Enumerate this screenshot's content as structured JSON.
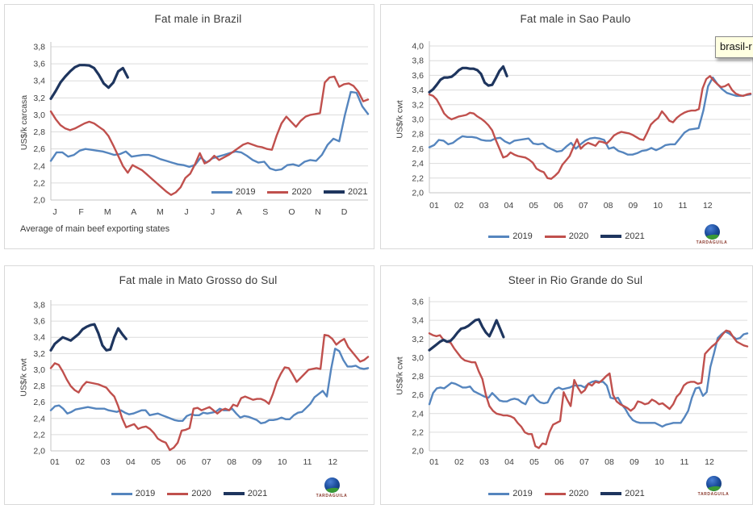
{
  "tooltip": {
    "text": "brasil-r"
  },
  "logo": {
    "text": "TARDAGUILA"
  },
  "colors": {
    "grid": "#DCDCDC",
    "axis": "#C6C6C6",
    "tick_label": "#404040"
  },
  "chart_data": [
    {
      "type": "line",
      "title": "Fat male in Brazil",
      "ylabel": "US$/k carcasa",
      "footnote": "Average of main beef exporting states",
      "ylim": [
        2.0,
        3.8
      ],
      "yticks": [
        "3,8",
        "3,6",
        "3,4",
        "3,2",
        "3,0",
        "2,8",
        "2,6",
        "2,4",
        "2,2",
        "2,0"
      ],
      "xlabels": [
        "J",
        "F",
        "M",
        "A",
        "M",
        "J",
        "J",
        "A",
        "S",
        "O",
        "N",
        "D"
      ],
      "grid": true,
      "legend_position": "inside-right",
      "series": [
        {
          "name": "2019",
          "color": "#5585BE",
          "values": [
            2.46,
            2.56,
            2.56,
            2.51,
            2.53,
            2.58,
            2.6,
            2.59,
            2.58,
            2.57,
            2.55,
            2.53,
            2.54,
            2.57,
            2.51,
            2.52,
            2.53,
            2.53,
            2.51,
            2.48,
            2.46,
            2.44,
            2.42,
            2.41,
            2.39,
            2.41,
            2.5,
            2.44,
            2.49,
            2.51,
            2.53,
            2.55,
            2.57,
            2.56,
            2.52,
            2.47,
            2.44,
            2.45,
            2.37,
            2.35,
            2.36,
            2.41,
            2.42,
            2.4,
            2.45,
            2.47,
            2.46,
            2.53,
            2.65,
            2.72,
            2.69,
            3.0,
            3.27,
            3.26,
            3.1,
            3.01
          ]
        },
        {
          "name": "2020",
          "color": "#C0504D",
          "values": [
            3.04,
            2.95,
            2.88,
            2.84,
            2.82,
            2.84,
            2.87,
            2.9,
            2.92,
            2.9,
            2.86,
            2.82,
            2.75,
            2.64,
            2.52,
            2.4,
            2.32,
            2.41,
            2.38,
            2.35,
            2.3,
            2.25,
            2.2,
            2.15,
            2.1,
            2.06,
            2.09,
            2.15,
            2.26,
            2.31,
            2.42,
            2.55,
            2.43,
            2.46,
            2.52,
            2.47,
            2.5,
            2.53,
            2.57,
            2.61,
            2.65,
            2.67,
            2.65,
            2.63,
            2.62,
            2.6,
            2.59,
            2.76,
            2.9,
            2.98,
            2.92,
            2.86,
            2.93,
            2.98,
            3.0,
            3.01,
            3.02,
            3.38,
            3.44,
            3.45,
            3.33,
            3.36,
            3.37,
            3.34,
            3.27,
            3.16,
            3.18
          ]
        },
        {
          "name": "2021",
          "color": "#1E355E",
          "values": [
            3.19,
            3.28,
            3.38,
            3.45,
            3.51,
            3.56,
            3.585,
            3.585,
            3.58,
            3.55,
            3.47,
            3.37,
            3.32,
            3.38,
            3.51,
            3.55,
            3.44
          ]
        }
      ]
    },
    {
      "type": "line",
      "title": "Fat male in Sao Paulo",
      "ylabel": "US$/k cwt",
      "ylim": [
        2.0,
        4.0
      ],
      "yticks": [
        "4,0",
        "3,8",
        "3,6",
        "3,4",
        "3,2",
        "3,0",
        "2,8",
        "2,6",
        "2,4",
        "2,2",
        "2,0"
      ],
      "xlabels": [
        "01",
        "02",
        "03",
        "04",
        "05",
        "06",
        "07",
        "08",
        "09",
        "10",
        "11",
        "12"
      ],
      "grid": true,
      "legend_position": "bottom",
      "series": [
        {
          "name": "2019",
          "color": "#5585BE",
          "values": [
            2.62,
            2.65,
            2.72,
            2.71,
            2.66,
            2.68,
            2.73,
            2.77,
            2.76,
            2.76,
            2.75,
            2.72,
            2.71,
            2.71,
            2.74,
            2.75,
            2.7,
            2.67,
            2.71,
            2.72,
            2.73,
            2.74,
            2.67,
            2.66,
            2.67,
            2.62,
            2.59,
            2.56,
            2.57,
            2.63,
            2.68,
            2.6,
            2.66,
            2.71,
            2.74,
            2.75,
            2.74,
            2.72,
            2.6,
            2.62,
            2.57,
            2.55,
            2.52,
            2.52,
            2.54,
            2.57,
            2.58,
            2.61,
            2.58,
            2.61,
            2.65,
            2.66,
            2.66,
            2.74,
            2.82,
            2.86,
            2.87,
            2.88,
            3.12,
            3.45,
            3.57,
            3.48,
            3.41,
            3.36,
            3.34,
            3.32,
            3.32,
            3.33,
            3.34
          ]
        },
        {
          "name": "2020",
          "color": "#C0504D",
          "values": [
            3.34,
            3.32,
            3.27,
            3.18,
            3.08,
            3.03,
            3.0,
            3.02,
            3.04,
            3.05,
            3.06,
            3.09,
            3.08,
            3.04,
            3.01,
            2.97,
            2.92,
            2.85,
            2.72,
            2.6,
            2.48,
            2.5,
            2.55,
            2.52,
            2.5,
            2.49,
            2.48,
            2.45,
            2.41,
            2.33,
            2.3,
            2.28,
            2.2,
            2.19,
            2.23,
            2.28,
            2.38,
            2.44,
            2.5,
            2.62,
            2.73,
            2.6,
            2.65,
            2.68,
            2.66,
            2.64,
            2.7,
            2.69,
            2.67,
            2.72,
            2.78,
            2.81,
            2.83,
            2.82,
            2.81,
            2.79,
            2.76,
            2.73,
            2.72,
            2.82,
            2.93,
            2.98,
            3.02,
            3.11,
            3.05,
            2.98,
            2.96,
            3.02,
            3.06,
            3.09,
            3.11,
            3.12,
            3.12,
            3.14,
            3.42,
            3.55,
            3.59,
            3.53,
            3.48,
            3.44,
            3.45,
            3.48,
            3.4,
            3.35,
            3.33,
            3.32,
            3.34,
            3.35
          ]
        },
        {
          "name": "2021",
          "color": "#1E355E",
          "values": [
            3.37,
            3.41,
            3.47,
            3.54,
            3.57,
            3.57,
            3.58,
            3.62,
            3.67,
            3.7,
            3.7,
            3.69,
            3.69,
            3.67,
            3.62,
            3.5,
            3.46,
            3.47,
            3.56,
            3.66,
            3.72,
            3.59
          ]
        }
      ]
    },
    {
      "type": "line",
      "title": "Fat male in Mato Grosso do Sul",
      "ylabel": "US$/k cwt",
      "ylim": [
        2.0,
        3.8
      ],
      "yticks": [
        "3,8",
        "3,6",
        "3,4",
        "3,2",
        "3,0",
        "2,8",
        "2,6",
        "2,4",
        "2,2",
        "2,0"
      ],
      "xlabels": [
        "01",
        "02",
        "03",
        "04",
        "05",
        "06",
        "07",
        "08",
        "09",
        "10",
        "11",
        "12"
      ],
      "grid": true,
      "legend_position": "bottom",
      "series": [
        {
          "name": "2019",
          "color": "#5585BE",
          "values": [
            2.5,
            2.55,
            2.56,
            2.52,
            2.46,
            2.48,
            2.51,
            2.52,
            2.53,
            2.54,
            2.53,
            2.52,
            2.52,
            2.52,
            2.5,
            2.49,
            2.48,
            2.5,
            2.47,
            2.45,
            2.46,
            2.48,
            2.5,
            2.5,
            2.44,
            2.45,
            2.46,
            2.44,
            2.42,
            2.4,
            2.38,
            2.37,
            2.37,
            2.43,
            2.45,
            2.44,
            2.44,
            2.47,
            2.46,
            2.47,
            2.48,
            2.52,
            2.5,
            2.5,
            2.52,
            2.46,
            2.41,
            2.43,
            2.42,
            2.4,
            2.38,
            2.34,
            2.35,
            2.38,
            2.38,
            2.39,
            2.41,
            2.39,
            2.39,
            2.44,
            2.47,
            2.48,
            2.53,
            2.58,
            2.66,
            2.7,
            2.74,
            2.67,
            3.0,
            3.26,
            3.23,
            3.12,
            3.04,
            3.04,
            3.05,
            3.02,
            3.01,
            3.02
          ]
        },
        {
          "name": "2020",
          "color": "#C0504D",
          "values": [
            3.02,
            3.08,
            3.06,
            2.98,
            2.88,
            2.8,
            2.75,
            2.72,
            2.8,
            2.85,
            2.84,
            2.83,
            2.82,
            2.8,
            2.78,
            2.72,
            2.67,
            2.55,
            2.4,
            2.29,
            2.31,
            2.33,
            2.27,
            2.29,
            2.3,
            2.27,
            2.22,
            2.15,
            2.12,
            2.1,
            2.01,
            2.04,
            2.1,
            2.25,
            2.26,
            2.28,
            2.52,
            2.53,
            2.5,
            2.52,
            2.54,
            2.5,
            2.46,
            2.5,
            2.52,
            2.5,
            2.57,
            2.55,
            2.65,
            2.67,
            2.65,
            2.63,
            2.64,
            2.64,
            2.62,
            2.58,
            2.7,
            2.85,
            2.95,
            3.03,
            3.02,
            2.94,
            2.85,
            2.9,
            2.95,
            3.0,
            3.01,
            3.02,
            3.01,
            3.43,
            3.42,
            3.38,
            3.31,
            3.35,
            3.38,
            3.28,
            3.22,
            3.16,
            3.1,
            3.12,
            3.16
          ]
        },
        {
          "name": "2021",
          "color": "#1E355E",
          "values": [
            3.24,
            3.32,
            3.36,
            3.4,
            3.38,
            3.36,
            3.4,
            3.44,
            3.5,
            3.53,
            3.55,
            3.56,
            3.45,
            3.3,
            3.24,
            3.25,
            3.4,
            3.51,
            3.44,
            3.38
          ]
        }
      ]
    },
    {
      "type": "line",
      "title": "Steer in Rio Grande do Sul",
      "ylabel": "US$/k cwt",
      "ylim": [
        2.0,
        3.6
      ],
      "yticks": [
        "3,6",
        "3,4",
        "3,2",
        "3,0",
        "2,8",
        "2,6",
        "2,4",
        "2,2",
        "2,0"
      ],
      "xlabels": [
        "01",
        "02",
        "03",
        "04",
        "05",
        "06",
        "07",
        "08",
        "09",
        "10",
        "11",
        "12"
      ],
      "grid": true,
      "legend_position": "bottom",
      "series": [
        {
          "name": "2019",
          "color": "#5585BE",
          "values": [
            2.5,
            2.62,
            2.67,
            2.68,
            2.67,
            2.7,
            2.73,
            2.72,
            2.7,
            2.68,
            2.68,
            2.69,
            2.64,
            2.62,
            2.6,
            2.58,
            2.57,
            2.62,
            2.58,
            2.54,
            2.53,
            2.53,
            2.55,
            2.56,
            2.55,
            2.52,
            2.5,
            2.58,
            2.6,
            2.55,
            2.52,
            2.51,
            2.52,
            2.6,
            2.66,
            2.68,
            2.66,
            2.67,
            2.68,
            2.7,
            2.7,
            2.7,
            2.68,
            2.72,
            2.74,
            2.75,
            2.74,
            2.74,
            2.7,
            2.57,
            2.56,
            2.57,
            2.5,
            2.45,
            2.38,
            2.33,
            2.31,
            2.3,
            2.3,
            2.3,
            2.3,
            2.3,
            2.28,
            2.26,
            2.28,
            2.29,
            2.3,
            2.3,
            2.3,
            2.36,
            2.43,
            2.57,
            2.67,
            2.68,
            2.59,
            2.63,
            2.9,
            3.05,
            3.21,
            3.25,
            3.28,
            3.26,
            3.23,
            3.2,
            3.21,
            3.25,
            3.26
          ]
        },
        {
          "name": "2020",
          "color": "#C0504D",
          "values": [
            3.26,
            3.24,
            3.23,
            3.24,
            3.19,
            3.17,
            3.16,
            3.1,
            3.05,
            3.0,
            2.97,
            2.96,
            2.95,
            2.95,
            2.85,
            2.77,
            2.6,
            2.48,
            2.43,
            2.4,
            2.39,
            2.38,
            2.38,
            2.37,
            2.35,
            2.3,
            2.26,
            2.2,
            2.18,
            2.18,
            2.05,
            2.03,
            2.08,
            2.07,
            2.2,
            2.28,
            2.3,
            2.32,
            2.63,
            2.55,
            2.48,
            2.76,
            2.68,
            2.62,
            2.65,
            2.72,
            2.7,
            2.74,
            2.73,
            2.76,
            2.8,
            2.83,
            2.6,
            2.53,
            2.5,
            2.48,
            2.46,
            2.43,
            2.46,
            2.53,
            2.52,
            2.5,
            2.51,
            2.55,
            2.53,
            2.5,
            2.51,
            2.48,
            2.45,
            2.5,
            2.58,
            2.62,
            2.7,
            2.73,
            2.74,
            2.74,
            2.72,
            2.73,
            3.04,
            3.08,
            3.12,
            3.15,
            3.2,
            3.25,
            3.29,
            3.28,
            3.22,
            3.17,
            3.15,
            3.13,
            3.12
          ]
        },
        {
          "name": "2021",
          "color": "#1E355E",
          "values": [
            3.08,
            3.11,
            3.14,
            3.17,
            3.19,
            3.17,
            3.18,
            3.22,
            3.27,
            3.31,
            3.32,
            3.34,
            3.37,
            3.4,
            3.41,
            3.33,
            3.27,
            3.23,
            3.31,
            3.4,
            3.31,
            3.22
          ]
        }
      ]
    }
  ]
}
